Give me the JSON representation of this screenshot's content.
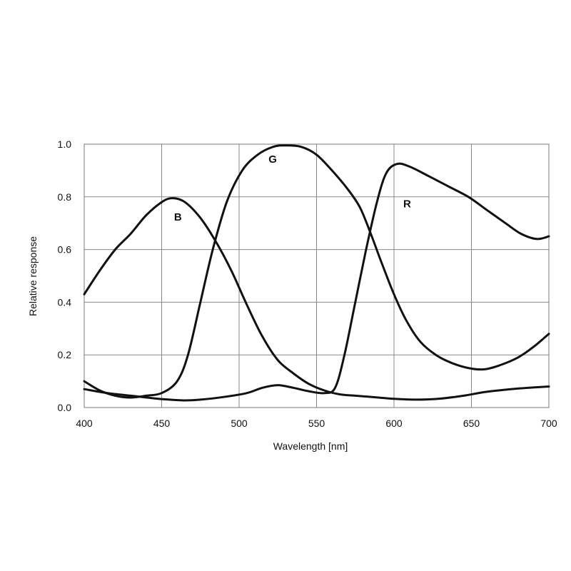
{
  "chart_data": {
    "type": "line",
    "xlabel": "Wavelength [nm]",
    "ylabel": "Relative response",
    "xlim": [
      400,
      700
    ],
    "ylim": [
      0,
      1.0
    ],
    "x_ticks": [
      "400",
      "450",
      "500",
      "550",
      "600",
      "650",
      "700"
    ],
    "y_ticks": [
      "0.0",
      "0.2",
      "0.4",
      "0.6",
      "0.8",
      "1.0"
    ],
    "grid": true,
    "series": [
      {
        "name": "B",
        "label_pos": [
          458,
          0.71
        ],
        "points": [
          [
            400,
            0.43
          ],
          [
            410,
            0.52
          ],
          [
            420,
            0.6
          ],
          [
            430,
            0.66
          ],
          [
            440,
            0.73
          ],
          [
            450,
            0.78
          ],
          [
            457,
            0.795
          ],
          [
            465,
            0.78
          ],
          [
            475,
            0.72
          ],
          [
            485,
            0.63
          ],
          [
            495,
            0.52
          ],
          [
            505,
            0.39
          ],
          [
            515,
            0.27
          ],
          [
            525,
            0.18
          ],
          [
            535,
            0.13
          ],
          [
            545,
            0.09
          ],
          [
            555,
            0.065
          ],
          [
            565,
            0.05
          ],
          [
            575,
            0.045
          ],
          [
            590,
            0.038
          ],
          [
            600,
            0.033
          ],
          [
            615,
            0.03
          ],
          [
            630,
            0.034
          ],
          [
            645,
            0.045
          ],
          [
            660,
            0.06
          ],
          [
            680,
            0.072
          ],
          [
            700,
            0.08
          ]
        ]
      },
      {
        "name": "G",
        "label_pos": [
          519,
          0.93
        ],
        "points": [
          [
            400,
            0.1
          ],
          [
            410,
            0.065
          ],
          [
            420,
            0.045
          ],
          [
            430,
            0.038
          ],
          [
            440,
            0.045
          ],
          [
            450,
            0.055
          ],
          [
            460,
            0.1
          ],
          [
            467,
            0.2
          ],
          [
            475,
            0.4
          ],
          [
            483,
            0.6
          ],
          [
            492,
            0.78
          ],
          [
            502,
            0.9
          ],
          [
            512,
            0.96
          ],
          [
            522,
            0.99
          ],
          [
            530,
            0.995
          ],
          [
            540,
            0.99
          ],
          [
            550,
            0.96
          ],
          [
            560,
            0.9
          ],
          [
            570,
            0.83
          ],
          [
            578,
            0.76
          ],
          [
            585,
            0.66
          ],
          [
            592,
            0.55
          ],
          [
            600,
            0.43
          ],
          [
            608,
            0.33
          ],
          [
            617,
            0.25
          ],
          [
            627,
            0.2
          ],
          [
            637,
            0.17
          ],
          [
            648,
            0.15
          ],
          [
            658,
            0.145
          ],
          [
            668,
            0.16
          ],
          [
            680,
            0.19
          ],
          [
            690,
            0.23
          ],
          [
            700,
            0.28
          ]
        ]
      },
      {
        "name": "R",
        "label_pos": [
          606,
          0.76
        ],
        "points": [
          [
            400,
            0.07
          ],
          [
            415,
            0.055
          ],
          [
            430,
            0.045
          ],
          [
            445,
            0.035
          ],
          [
            455,
            0.03
          ],
          [
            465,
            0.027
          ],
          [
            475,
            0.03
          ],
          [
            490,
            0.04
          ],
          [
            505,
            0.055
          ],
          [
            515,
            0.075
          ],
          [
            525,
            0.085
          ],
          [
            535,
            0.075
          ],
          [
            545,
            0.062
          ],
          [
            555,
            0.055
          ],
          [
            562,
            0.075
          ],
          [
            568,
            0.2
          ],
          [
            575,
            0.4
          ],
          [
            582,
            0.6
          ],
          [
            589,
            0.78
          ],
          [
            595,
            0.89
          ],
          [
            602,
            0.925
          ],
          [
            610,
            0.915
          ],
          [
            622,
            0.88
          ],
          [
            635,
            0.84
          ],
          [
            648,
            0.8
          ],
          [
            660,
            0.75
          ],
          [
            672,
            0.7
          ],
          [
            682,
            0.66
          ],
          [
            692,
            0.64
          ],
          [
            700,
            0.65
          ]
        ]
      }
    ]
  }
}
